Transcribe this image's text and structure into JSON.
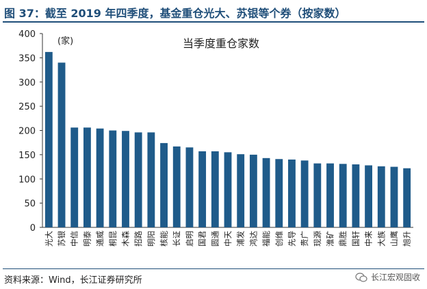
{
  "figure_title": "图 37：截至 2019 年四季度，基金重仓光大、苏银等个券（按家数）",
  "source_note": "资料来源：Wind，长江证券研究所",
  "watermark_text": "长江宏观固收",
  "watermark_icon": "wechat-icon",
  "colors": {
    "bar": "#1f5b8a",
    "title": "#1f4e79",
    "axis": "#333333"
  },
  "chart_data": {
    "type": "bar",
    "title": "当季度重仓家数",
    "unit_annotation": "(家)",
    "ylim": [
      0,
      400
    ],
    "yticks": [
      0,
      50,
      100,
      150,
      200,
      250,
      300,
      350,
      400
    ],
    "grid": false,
    "categories": [
      "光大",
      "苏银",
      "中信",
      "明泰",
      "通威",
      "桐昆",
      "木森",
      "招路",
      "明阳",
      "核能",
      "长证",
      "启明",
      "国君",
      "圆通",
      "中天",
      "浦发",
      "鸿达",
      "福能",
      "创维",
      "先导",
      "贵广",
      "现源",
      "淮矿",
      "鼎胜",
      "国轩",
      "中来",
      "大族",
      "山鹰",
      "旭升"
    ],
    "values": [
      362,
      340,
      206,
      206,
      204,
      200,
      199,
      196,
      196,
      174,
      167,
      165,
      157,
      157,
      155,
      151,
      150,
      143,
      141,
      140,
      138,
      132,
      132,
      131,
      130,
      128,
      126,
      125,
      122
    ]
  }
}
